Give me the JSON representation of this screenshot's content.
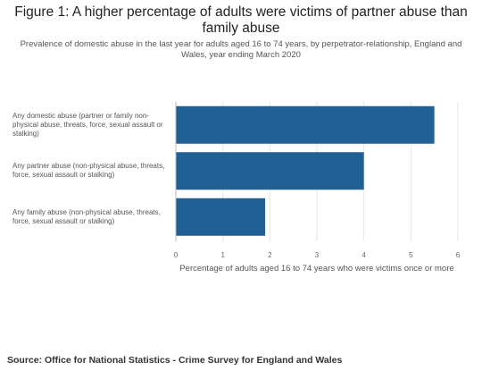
{
  "chart_data": {
    "type": "bar",
    "orientation": "horizontal",
    "title": "Figure 1: A higher percentage of adults were victims of partner abuse than family abuse",
    "subtitle": "Prevalence of domestic abuse in the last year for adults aged 16 to 74 years, by perpetrator-relationship, England and Wales, year ending March 2020",
    "categories": [
      "Any domestic abuse (partner or family non-physical abuse, threats, force, sexual assault or stalking)",
      "Any partner abuse (non-physical abuse, threats, force, sexual assault or stalking)",
      "Any family abuse (non-physical abuse, threats, force, sexual assault or stalking)"
    ],
    "values": [
      5.5,
      4.0,
      1.9
    ],
    "xlabel": "Percentage of adults aged 16 to 74 years who were victims once or more",
    "ylabel": "",
    "xlim": [
      0,
      6
    ],
    "xticks": [
      "0",
      "1",
      "2",
      "3",
      "4",
      "5",
      "6"
    ],
    "grid": true,
    "bar_color": "#206095",
    "grid_color": "#e6e6e6"
  },
  "source": "Source: Office for National Statistics - Crime Survey for England and Wales"
}
